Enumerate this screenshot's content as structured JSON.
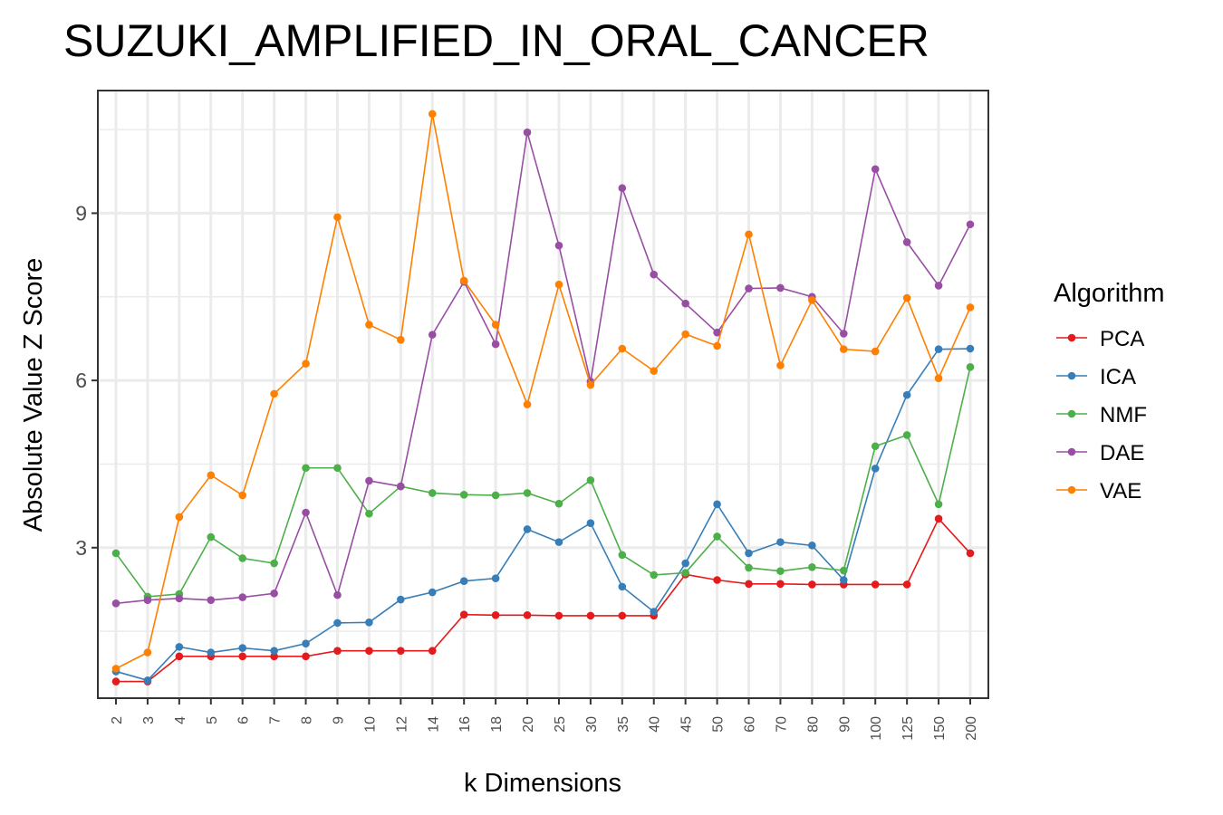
{
  "chart_data": {
    "type": "line",
    "title": "SUZUKI_AMPLIFIED_IN_ORAL_CANCER",
    "xlabel": "k Dimensions",
    "ylabel": "Absolute Value Z Score",
    "x_scale": "categorical",
    "categories": [
      "2",
      "3",
      "4",
      "5",
      "6",
      "7",
      "8",
      "9",
      "10",
      "12",
      "14",
      "16",
      "18",
      "20",
      "25",
      "30",
      "35",
      "40",
      "45",
      "50",
      "60",
      "70",
      "80",
      "90",
      "100",
      "125",
      "150",
      "200"
    ],
    "y_ticks": [
      3,
      6,
      9
    ],
    "y_tick_labels": [
      "3",
      "6",
      "9"
    ],
    "ylim": [
      0.3,
      11.2
    ],
    "grid": true,
    "legend_title": "Algorithm",
    "legend_position": "right",
    "series": [
      {
        "name": "PCA",
        "color": "#e41a1c",
        "values": [
          0.6,
          0.6,
          1.05,
          1.05,
          1.05,
          1.05,
          1.05,
          1.15,
          1.15,
          1.15,
          1.15,
          1.8,
          1.79,
          1.79,
          1.78,
          1.78,
          1.78,
          1.78,
          2.52,
          2.42,
          2.35,
          2.35,
          2.34,
          2.34,
          2.34,
          2.34,
          3.52,
          2.9
        ]
      },
      {
        "name": "ICA",
        "color": "#377eb8",
        "values": [
          0.78,
          0.62,
          1.22,
          1.12,
          1.2,
          1.15,
          1.28,
          1.65,
          1.66,
          2.07,
          2.2,
          2.4,
          2.45,
          3.33,
          3.1,
          3.44,
          2.3,
          1.85,
          2.72,
          3.78,
          2.9,
          3.1,
          3.04,
          2.42,
          4.42,
          5.74,
          6.56,
          6.57
        ]
      },
      {
        "name": "NMF",
        "color": "#4daf4a",
        "values": [
          2.9,
          2.12,
          2.17,
          3.19,
          2.81,
          2.72,
          4.43,
          4.43,
          3.61,
          4.1,
          3.98,
          3.95,
          3.94,
          3.98,
          3.79,
          4.21,
          2.87,
          2.51,
          2.55,
          3.2,
          2.64,
          2.58,
          2.65,
          2.59,
          4.82,
          5.02,
          3.78,
          6.24
        ]
      },
      {
        "name": "DAE",
        "color": "#984ea3",
        "values": [
          2.0,
          2.06,
          2.09,
          2.06,
          2.11,
          2.18,
          3.63,
          2.15,
          4.2,
          4.1,
          6.82,
          7.77,
          6.65,
          10.45,
          8.42,
          5.98,
          9.45,
          7.9,
          7.38,
          6.86,
          7.65,
          7.66,
          7.5,
          6.84,
          9.79,
          8.48,
          7.7,
          8.8
        ]
      },
      {
        "name": "VAE",
        "color": "#ff7f00",
        "values": [
          0.83,
          1.12,
          3.55,
          4.3,
          3.94,
          5.76,
          6.3,
          8.93,
          7.0,
          6.73,
          10.78,
          7.79,
          7.0,
          5.57,
          7.72,
          5.92,
          6.57,
          6.17,
          6.83,
          6.62,
          8.62,
          6.27,
          7.44,
          6.56,
          6.52,
          7.48,
          6.04,
          7.31
        ]
      }
    ]
  }
}
